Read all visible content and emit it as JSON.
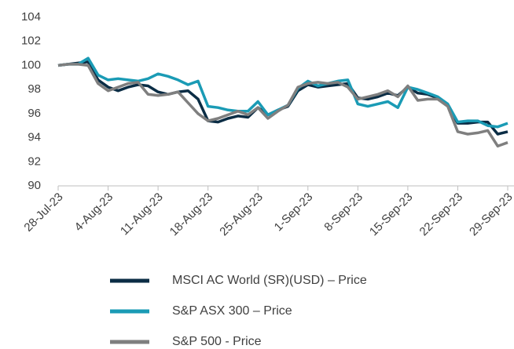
{
  "chart_data": {
    "type": "line",
    "categories": [
      "28-Jul-23",
      null,
      null,
      null,
      null,
      "4-Aug-23",
      null,
      null,
      null,
      null,
      "11-Aug-23",
      null,
      null,
      null,
      null,
      "18-Aug-23",
      null,
      null,
      null,
      null,
      "25-Aug-23",
      null,
      null,
      null,
      null,
      "1-Sep-23",
      null,
      null,
      null,
      null,
      "8-Sep-23",
      null,
      null,
      null,
      null,
      "15-Sep-23",
      null,
      null,
      null,
      null,
      "22-Sep-23",
      null,
      null,
      null,
      null,
      "29-Sep-23"
    ],
    "series": [
      {
        "name": "MSCI AC World (SR)(USD) – Price",
        "color": "#0b2d45",
        "values": [
          100,
          100.1,
          100.2,
          100.3,
          98.8,
          98.2,
          97.9,
          98.2,
          98.4,
          98.3,
          97.8,
          97.6,
          97.8,
          97.9,
          97.2,
          95.4,
          95.3,
          95.6,
          95.8,
          95.7,
          96.5,
          95.9,
          96.3,
          96.6,
          97.9,
          98.4,
          98.2,
          98.3,
          98.4,
          98.5,
          97.3,
          97.2,
          97.4,
          97.7,
          97.5,
          98.2,
          97.7,
          97.6,
          97.3,
          96.7,
          95.2,
          95.2,
          95.3,
          95.3,
          94.3,
          94.5
        ]
      },
      {
        "name": "S&P ASX 300 – Price",
        "color": "#1a9bb5",
        "values": [
          100,
          100.1,
          100.1,
          100.6,
          99.2,
          98.8,
          98.9,
          98.8,
          98.7,
          98.9,
          99.3,
          99.1,
          98.8,
          98.4,
          98.7,
          96.6,
          96.5,
          96.3,
          96.2,
          96.2,
          97.0,
          95.9,
          96.3,
          96.7,
          98.1,
          98.7,
          98.3,
          98.5,
          98.7,
          98.8,
          96.8,
          96.6,
          96.8,
          97.0,
          96.5,
          98.2,
          98.0,
          97.7,
          97.4,
          96.8,
          95.3,
          95.4,
          95.4,
          95.0,
          94.9,
          95.2
        ]
      },
      {
        "name": "S&P 500 - Price",
        "color": "#7f7f7f",
        "values": [
          100,
          100.1,
          100.1,
          100.0,
          98.5,
          97.9,
          98.2,
          98.5,
          98.6,
          97.6,
          97.5,
          97.6,
          97.8,
          96.9,
          96.0,
          95.4,
          95.6,
          95.9,
          96.2,
          95.9,
          96.5,
          95.6,
          96.2,
          96.7,
          98.2,
          98.5,
          98.6,
          98.5,
          98.6,
          98.2,
          97.2,
          97.4,
          97.6,
          97.9,
          97.4,
          98.3,
          97.1,
          97.2,
          97.2,
          96.6,
          94.5,
          94.3,
          94.4,
          94.6,
          93.3,
          93.6
        ]
      }
    ],
    "ylim": [
      90,
      104
    ],
    "yticks": [
      90,
      92,
      94,
      96,
      98,
      100,
      102,
      104
    ],
    "grid": false,
    "legend": "bottom"
  }
}
